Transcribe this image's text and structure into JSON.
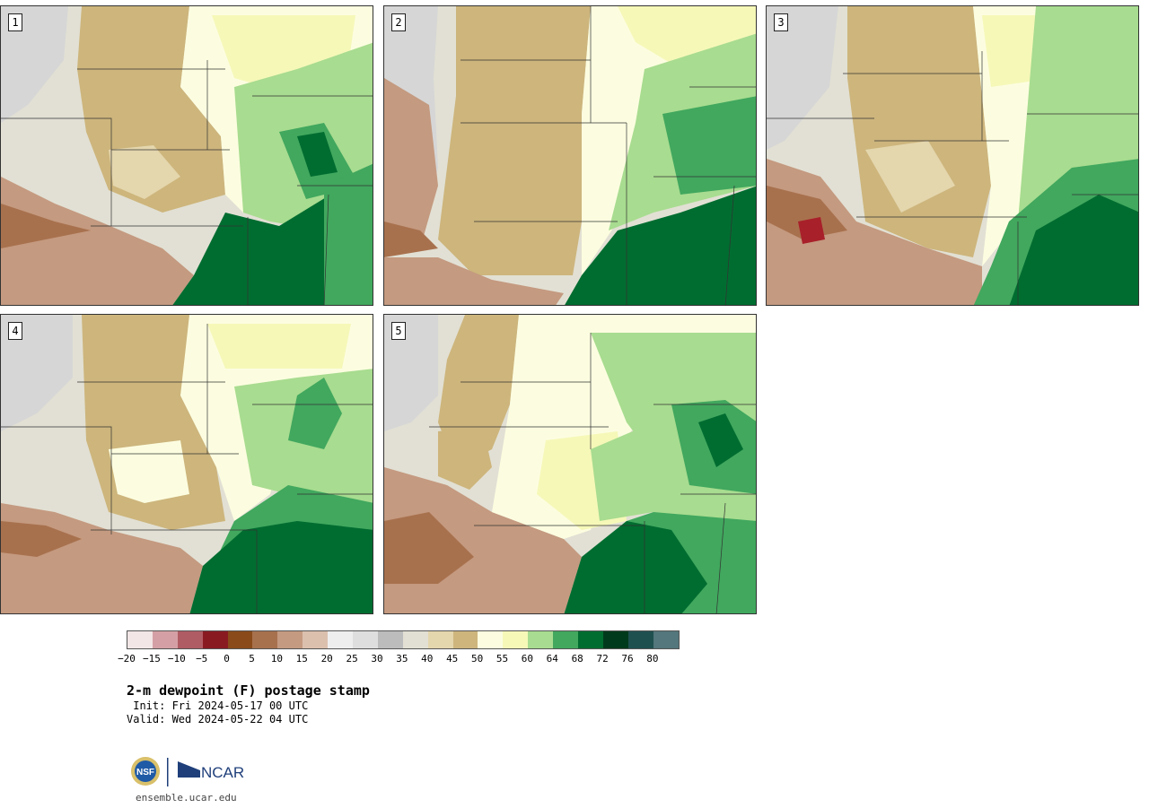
{
  "panels": [
    {
      "label": "1"
    },
    {
      "label": "2"
    },
    {
      "label": "3"
    },
    {
      "label": "4"
    },
    {
      "label": "5"
    }
  ],
  "colorbar": {
    "colors": [
      "#f2e6e6",
      "#d4a0a5",
      "#b05c64",
      "#8a1a22",
      "#8a4a1a",
      "#a8714e",
      "#c49a80",
      "#dcc0ae",
      "#eeeeee",
      "#dedede",
      "#bcbcbc",
      "#e2e0d4",
      "#e4d6ad",
      "#cdb57c",
      "#fcfde0",
      "#f6f8b8",
      "#a8dc90",
      "#41a85e",
      "#006d30",
      "#003a1c",
      "#1f5050",
      "#53777c"
    ],
    "ticks": [
      "-20",
      "-15",
      "-10",
      "-5",
      "0",
      "5",
      "10",
      "15",
      "20",
      "25",
      "30",
      "35",
      "40",
      "45",
      "50",
      "55",
      "60",
      "64",
      "68",
      "72",
      "76",
      "80"
    ]
  },
  "title": "2-m dewpoint (F) postage stamp",
  "init": " Init: Fri 2024-05-17 00 UTC",
  "valid": "Valid: Wed 2024-05-22 04 UTC",
  "logo": {
    "nsf": "NSF",
    "ncar": "NCAR"
  },
  "site": "ensemble.ucar.edu"
}
